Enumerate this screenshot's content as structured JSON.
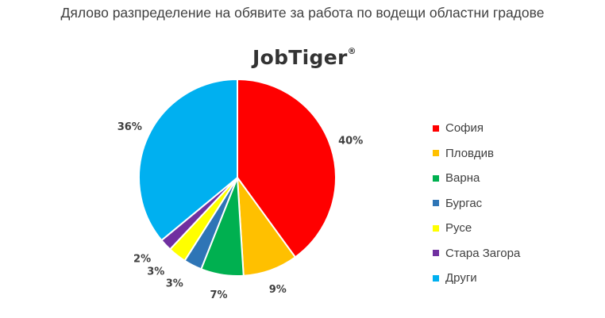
{
  "chart_data": {
    "type": "pie",
    "title": "Дялово разпределение на обявите за работа по водещи областни градове",
    "brand": "JobTiger",
    "brand_mark": "®",
    "legend_position": "right",
    "slices": [
      {
        "name": "София",
        "value": 40,
        "label": "40%",
        "color": "#FF0000"
      },
      {
        "name": "Пловдив",
        "value": 9,
        "label": "9%",
        "color": "#FFC000"
      },
      {
        "name": "Варна",
        "value": 7,
        "label": "7%",
        "color": "#00B050"
      },
      {
        "name": "Бургас",
        "value": 3,
        "label": "3%",
        "color": "#2E75B6"
      },
      {
        "name": "Русе",
        "value": 3,
        "label": "3%",
        "color": "#FFFF00"
      },
      {
        "name": "Стара Загора",
        "value": 2,
        "label": "2%",
        "color": "#7030A0"
      },
      {
        "name": "Други",
        "value": 36,
        "label": "36%",
        "color": "#00B0F0"
      }
    ]
  }
}
